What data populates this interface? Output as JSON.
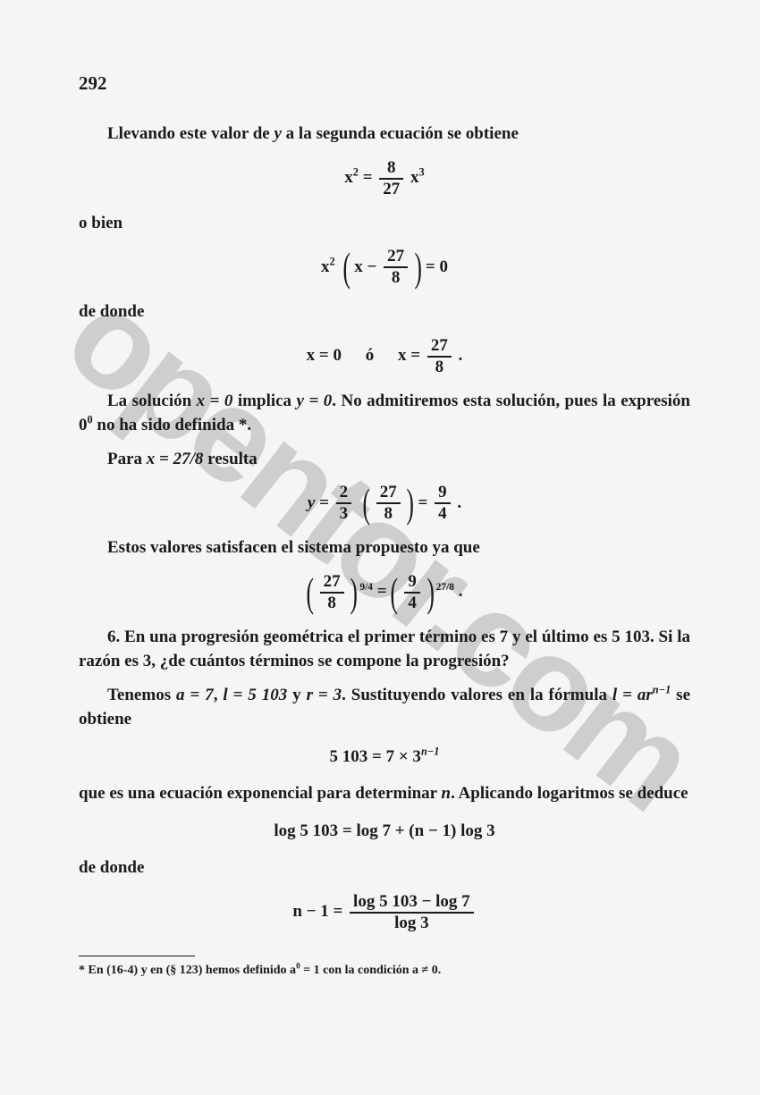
{
  "page_number": "292",
  "watermark_text": "opentor.com",
  "text_color": "#1a1a1a",
  "background_color": "#f5f5f3",
  "watermark_color": "#b0b0b0",
  "body_font_size_pt": 14,
  "p1": "Llevando este valor de ",
  "p1_var": "y",
  "p1b": " a la segunda ecuación se obtiene",
  "eq1_lhs": "x",
  "eq1_exp1": "2",
  "eq1_eq": " = ",
  "eq1_num": "8",
  "eq1_den": "27",
  "eq1_rhs": " x",
  "eq1_exp2": "3",
  "p2": "o bien",
  "eq2_a": "x",
  "eq2_exp": "2",
  "eq2_lp": "(",
  "eq2_inner1": "x − ",
  "eq2_num": "27",
  "eq2_den": "8",
  "eq2_rp": ")",
  "eq2_tail": " = 0",
  "p3": "de donde",
  "eq3_a": "x = 0",
  "eq3_or": "ó",
  "eq3_b1": "x = ",
  "eq3_num": "27",
  "eq3_den": "8",
  "eq3_dot": " .",
  "p4a": "La solución  ",
  "p4eq1": "x = 0",
  "p4b": "  implica  ",
  "p4eq2": "y = 0",
  "p4c": ".  No admitiremos esta solución, pues la expresión 0",
  "p4sup": "0",
  "p4d": " no ha sido definida *.",
  "p5a": "Para  ",
  "p5eq": "x = 27/8",
  "p5b": "  resulta",
  "eq4_y": "y = ",
  "eq4_n1": "2",
  "eq4_d1": "3",
  "eq4_lp": "(",
  "eq4_n2": "27",
  "eq4_d2": "8",
  "eq4_rp": ")",
  "eq4_eq": " = ",
  "eq4_n3": "9",
  "eq4_d3": "4",
  "eq4_dot": " .",
  "p6": "Estos valores satisfacen el sistema propuesto ya que",
  "eq5_lp1": "(",
  "eq5_n1": "27",
  "eq5_d1": "8",
  "eq5_rp1": ")",
  "eq5_exp1": "9/4",
  "eq5_eq": "  =  ",
  "eq5_lp2": "(",
  "eq5_n2": "9",
  "eq5_d2": "4",
  "eq5_rp2": ")",
  "eq5_exp2": "27/8",
  "eq5_dot": ".",
  "p7num": "6.",
  "p7": "  En una progresión geométrica el primer término es 7 y el último es 5 103.  Si la razón es 3, ¿de cuántos términos se compone la progresión?",
  "p8a": "Tenemos  ",
  "p8eq1": "a = 7",
  "p8b": ",  ",
  "p8eq2": "l = 5 103",
  "p8c": "  y  ",
  "p8eq3": "r = 3",
  "p8d": ".  Sustituyendo valores en la fórmula  ",
  "p8eq4a": "l = ar",
  "p8eq4sup": "n−1",
  "p8e": "  se obtiene",
  "eq6": "5 103 = 7 × 3",
  "eq6_sup": "n−1",
  "p9a": "que es una ecuación exponencial para determinar ",
  "p9n": "n",
  "p9b": ".  Aplicando logaritmos se deduce",
  "eq7": "log 5 103 = log 7 + (n − 1) log 3",
  "p10": "de donde",
  "eq8_lhs": "n − 1 = ",
  "eq8_num": "log 5 103 − log 7",
  "eq8_den": "log 3",
  "footnote": "* En (16-4) y en (§ 123) hemos definido a",
  "footnote_sup": "0",
  "footnote_b": " = 1 con la condición a ≠ 0."
}
